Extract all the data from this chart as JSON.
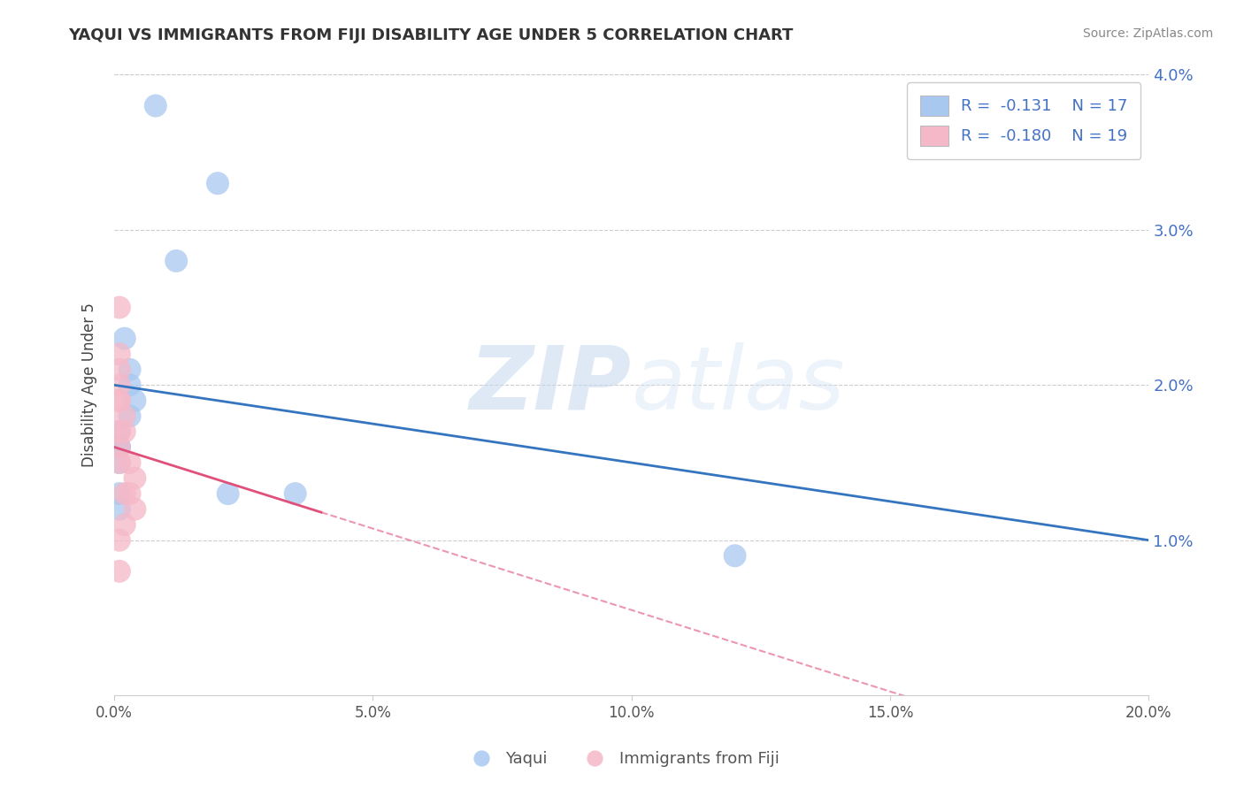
{
  "title": "YAQUI VS IMMIGRANTS FROM FIJI DISABILITY AGE UNDER 5 CORRELATION CHART",
  "source": "Source: ZipAtlas.com",
  "ylabel": "Disability Age Under 5",
  "xmin": 0.0,
  "xmax": 0.2,
  "ymin": 0.0,
  "ymax": 0.04,
  "xticks": [
    0.0,
    0.05,
    0.1,
    0.15,
    0.2
  ],
  "xtick_labels": [
    "0.0%",
    "5.0%",
    "10.0%",
    "15.0%",
    "20.0%"
  ],
  "yticks": [
    0.01,
    0.02,
    0.03,
    0.04
  ],
  "ytick_labels": [
    "1.0%",
    "2.0%",
    "3.0%",
    "4.0%"
  ],
  "blue_R": "-0.131",
  "blue_N": "17",
  "pink_R": "-0.180",
  "pink_N": "19",
  "blue_color": "#a8c8f0",
  "pink_color": "#f5b8c8",
  "trend_blue": "#3575c0",
  "trend_pink": "#e0507a",
  "legend_blue": "Yaqui",
  "legend_pink": "Immigrants from Fiji",
  "blue_x": [
    0.008,
    0.02,
    0.012,
    0.002,
    0.003,
    0.003,
    0.004,
    0.003,
    0.001,
    0.001,
    0.001,
    0.001,
    0.001,
    0.022,
    0.001,
    0.12,
    0.035
  ],
  "blue_y": [
    0.038,
    0.033,
    0.028,
    0.023,
    0.021,
    0.02,
    0.019,
    0.018,
    0.017,
    0.016,
    0.016,
    0.015,
    0.013,
    0.013,
    0.012,
    0.009,
    0.013
  ],
  "pink_x": [
    0.001,
    0.001,
    0.001,
    0.001,
    0.001,
    0.001,
    0.002,
    0.001,
    0.002,
    0.001,
    0.001,
    0.003,
    0.004,
    0.003,
    0.002,
    0.004,
    0.002,
    0.001,
    0.001
  ],
  "pink_y": [
    0.025,
    0.022,
    0.021,
    0.02,
    0.019,
    0.019,
    0.018,
    0.017,
    0.017,
    0.016,
    0.015,
    0.015,
    0.014,
    0.013,
    0.013,
    0.012,
    0.011,
    0.01,
    0.008
  ]
}
